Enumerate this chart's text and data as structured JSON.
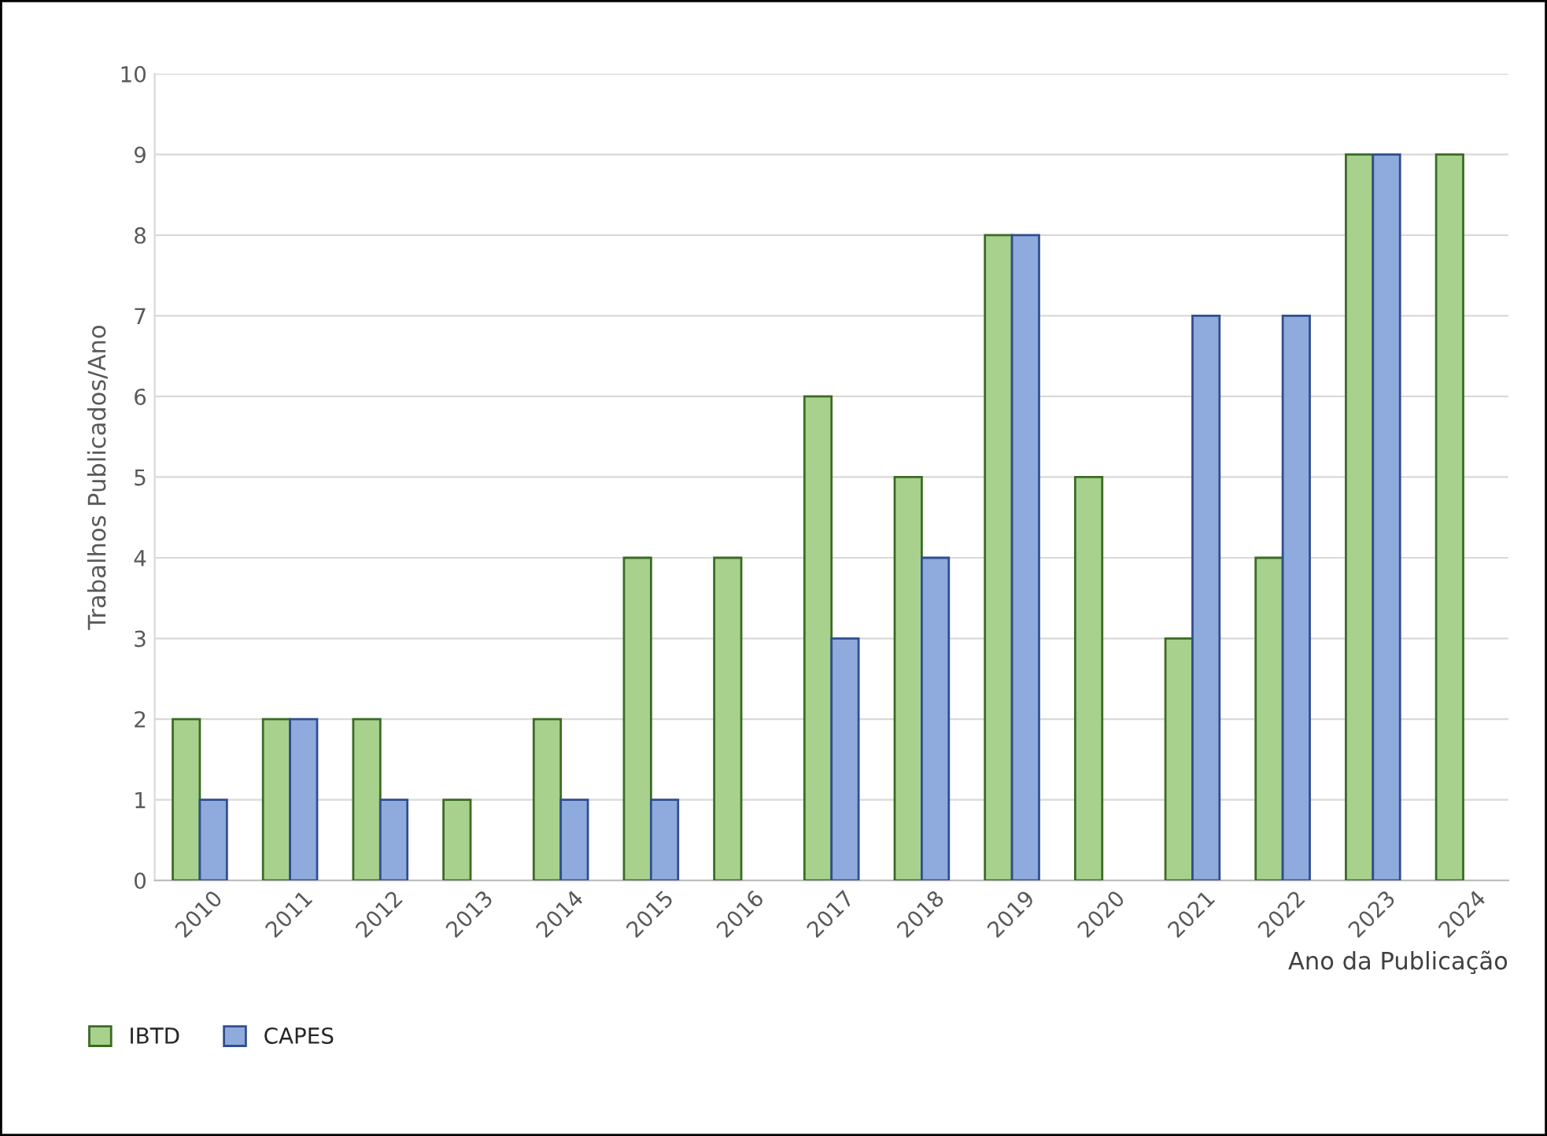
{
  "chart_data": {
    "type": "bar",
    "xlabel": "Ano da Publicação",
    "ylabel": "Trabalhos Publicados/Ano",
    "categories": [
      "2010",
      "2011",
      "2012",
      "2013",
      "2014",
      "2015",
      "2016",
      "2017",
      "2018",
      "2019",
      "2020",
      "2021",
      "2022",
      "2023",
      "2024"
    ],
    "series": [
      {
        "name": "IBTD",
        "color": "#a9d18e",
        "values": [
          2,
          2,
          2,
          1,
          2,
          4,
          4,
          6,
          5,
          8,
          5,
          3,
          4,
          9,
          9
        ]
      },
      {
        "name": "CAPES",
        "color": "#8faadc",
        "values": [
          1,
          2,
          1,
          null,
          1,
          1,
          null,
          3,
          4,
          8,
          null,
          7,
          7,
          9,
          null
        ]
      }
    ],
    "ylim": [
      0,
      10
    ],
    "yticks": [
      0,
      1,
      2,
      3,
      4,
      5,
      6,
      7,
      8,
      9,
      10
    ],
    "grid": "y",
    "legend": "bottom left"
  }
}
